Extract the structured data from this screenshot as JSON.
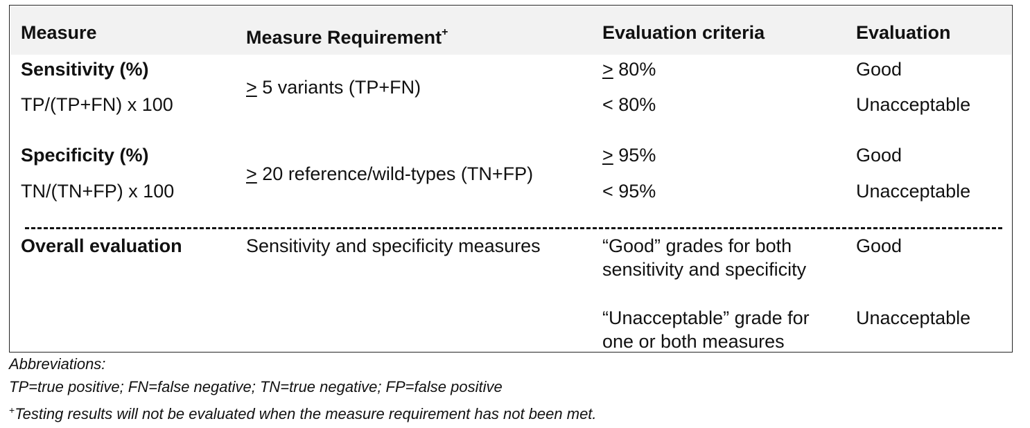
{
  "headers": {
    "measure": "Measure",
    "requirement": "Measure Requirement",
    "requirement_mark": "+",
    "criteria": "Evaluation criteria",
    "evaluation": "Evaluation"
  },
  "sensitivity": {
    "name": "Sensitivity (%)",
    "formula": "TP/(TP+FN) x 100",
    "req_symbol": ">",
    "req_text": " 5 variants (TP+FN)",
    "crit1_symbol": ">",
    "crit1_text": " 80%",
    "crit2": "< 80%",
    "eval1": "Good",
    "eval2": "Unacceptable"
  },
  "specificity": {
    "name": "Specificity (%)",
    "formula": "TN/(TN+FP) x 100",
    "req_symbol": ">",
    "req_text": " 20 reference/wild-types (TN+FP)",
    "crit1_symbol": ">",
    "crit1_text": " 95%",
    "crit2": "< 95%",
    "eval1": "Good",
    "eval2": "Unacceptable"
  },
  "overall": {
    "name": "Overall evaluation",
    "requirement": "Sensitivity and specificity measures",
    "crit1_line1": "“Good” grades for both",
    "crit1_line2": "sensitivity and specificity",
    "eval1": "Good",
    "crit2_line1": "“Unacceptable” grade for",
    "crit2_line2": "one or both measures",
    "eval2": "Unacceptable"
  },
  "footnotes": {
    "abbrev_title": "Abbreviations:",
    "abbrev_text": "TP=true positive; FN=false negative; TN=true negative; FP=false positive",
    "note_mark": "+",
    "note_text": "Testing results will not be evaluated when the measure requirement has not been met."
  }
}
